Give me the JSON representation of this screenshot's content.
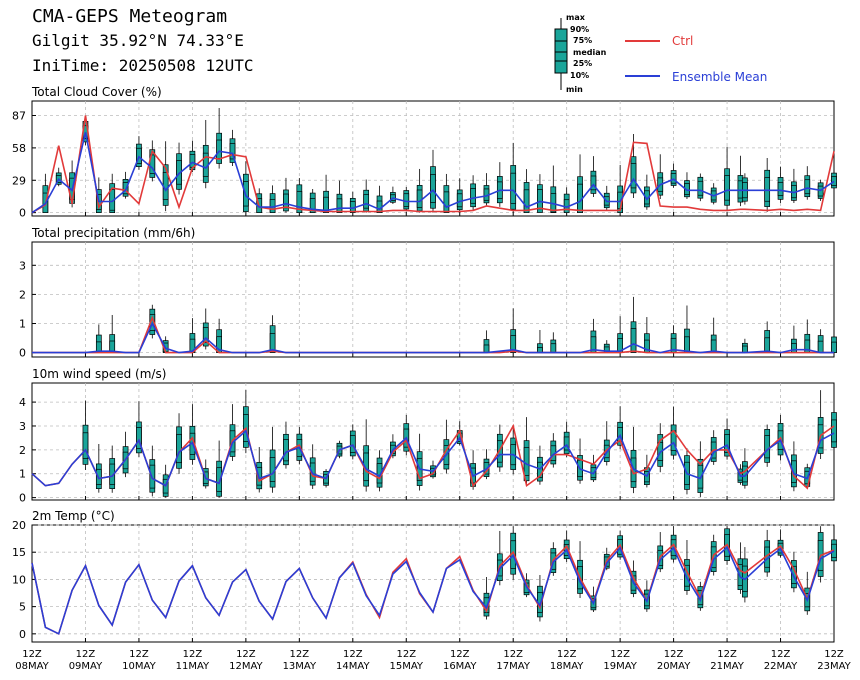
{
  "header": {
    "title": "CMA-GEPS Meteogram",
    "station": "Gilgit 35.92°N 74.33°E",
    "init_time": "IniTime: 20250508 12UTC"
  },
  "legend": {
    "box_labels": [
      "max",
      "90%",
      "75%",
      "median",
      "25%",
      "10%",
      "min"
    ],
    "ctrl_label": "Ctrl",
    "mean_label": "Ensemble Mean",
    "ctrl_color": "#e23a3a",
    "mean_color": "#2a3fd6",
    "box_color": "#1aa59a"
  },
  "x_axis": {
    "tick_labels": [
      [
        "12Z",
        "08MAY"
      ],
      [
        "12Z",
        "09MAY"
      ],
      [
        "12Z",
        "10MAY"
      ],
      [
        "12Z",
        "11MAY"
      ],
      [
        "12Z",
        "12MAY"
      ],
      [
        "12Z",
        "13MAY"
      ],
      [
        "12Z",
        "14MAY"
      ],
      [
        "12Z",
        "15MAY"
      ],
      [
        "12Z",
        "16MAY"
      ],
      [
        "12Z",
        "17MAY"
      ],
      [
        "12Z",
        "18MAY"
      ],
      [
        "12Z",
        "19MAY"
      ],
      [
        "12Z",
        "20MAY"
      ],
      [
        "12Z",
        "21MAY"
      ],
      [
        "12Z",
        "22MAY"
      ],
      [
        "12Z",
        "23MAY"
      ]
    ]
  },
  "chart_data": [
    {
      "type": "box",
      "title": "Total Cloud Cover (%)",
      "yticks": [
        0,
        29,
        58,
        87
      ],
      "ylim": [
        -3,
        100
      ],
      "x": [
        0,
        6,
        12,
        18,
        24,
        30,
        36,
        42,
        48,
        54,
        60,
        66,
        72,
        78,
        84,
        90,
        96,
        102,
        108,
        114,
        120,
        126,
        132,
        138,
        144,
        150,
        156,
        162,
        168,
        174,
        180,
        186,
        192,
        198,
        204,
        210,
        216,
        222,
        228,
        234,
        240,
        246,
        252,
        258,
        264,
        270,
        276,
        282,
        288,
        294,
        300,
        306,
        312,
        318,
        320,
        330,
        336,
        342,
        348,
        354,
        360
      ],
      "ctrl": [
        0,
        7,
        60,
        8,
        87,
        5,
        22,
        20,
        8,
        55,
        40,
        5,
        40,
        50,
        48,
        52,
        50,
        5,
        3,
        5,
        3,
        2,
        1,
        1,
        1,
        1,
        1,
        2,
        2,
        1,
        1,
        1,
        1,
        2,
        6,
        4,
        2,
        2,
        4,
        2,
        3,
        2,
        2,
        2,
        2,
        63,
        62,
        6,
        5,
        5,
        3,
        2,
        2,
        3,
        3,
        2,
        3,
        2,
        3,
        2,
        55
      ],
      "mean": [
        0,
        8,
        30,
        20,
        72,
        10,
        10,
        20,
        50,
        40,
        20,
        35,
        45,
        40,
        55,
        53,
        15,
        5,
        5,
        8,
        5,
        3,
        2,
        4,
        4,
        8,
        3,
        13,
        10,
        10,
        20,
        5,
        10,
        13,
        15,
        20,
        20,
        5,
        10,
        8,
        5,
        10,
        25,
        10,
        10,
        30,
        12,
        25,
        30,
        20,
        20,
        15,
        20,
        20,
        20,
        20,
        20,
        18,
        22,
        20,
        28
      ],
      "has_box": [
        0,
        1,
        1,
        1,
        1,
        1,
        1,
        1,
        1,
        1,
        1,
        1,
        1,
        1,
        1,
        1,
        1,
        1,
        1,
        1,
        1,
        1,
        1,
        1,
        1,
        1,
        1,
        1,
        1,
        1,
        1,
        1,
        1,
        1,
        1,
        1,
        1,
        1,
        1,
        1,
        1,
        1,
        1,
        1,
        1,
        1,
        1,
        1,
        1,
        1,
        1,
        1,
        1,
        1,
        1,
        1,
        1,
        1,
        1,
        1,
        1
      ]
    },
    {
      "type": "box",
      "title": "Total precipitation (mm/6h)",
      "yticks": [
        0,
        1,
        2,
        3
      ],
      "ylim": [
        -0.15,
        3.8
      ],
      "x": [
        0,
        6,
        12,
        18,
        24,
        30,
        36,
        42,
        48,
        54,
        60,
        66,
        72,
        78,
        84,
        90,
        96,
        102,
        108,
        114,
        120,
        126,
        132,
        138,
        144,
        150,
        156,
        162,
        168,
        174,
        180,
        186,
        192,
        198,
        204,
        210,
        216,
        222,
        228,
        234,
        240,
        246,
        252,
        258,
        264,
        270,
        276,
        282,
        288,
        294,
        300,
        306,
        312,
        318,
        320,
        330,
        336,
        342,
        348,
        354,
        360
      ],
      "ctrl": [
        0,
        0,
        0,
        0,
        0,
        0,
        0,
        0,
        0,
        1.2,
        0,
        0,
        0,
        0.4,
        0,
        0,
        0,
        0,
        0.05,
        0,
        0,
        0,
        0,
        0,
        0,
        0,
        0,
        0,
        0,
        0,
        0,
        0,
        0,
        0,
        0,
        0,
        0.05,
        0,
        0,
        0,
        0,
        0,
        0,
        0,
        0,
        0.05,
        0,
        0,
        0,
        0,
        0,
        0,
        0,
        0,
        0,
        0,
        0,
        0,
        0,
        0,
        0
      ],
      "mean": [
        0,
        0,
        0,
        0,
        0,
        0.05,
        0.05,
        0,
        0,
        1.0,
        0.15,
        0,
        0.05,
        0.5,
        0.1,
        0,
        0,
        0,
        0.1,
        0,
        0,
        0,
        0,
        0,
        0,
        0,
        0,
        0,
        0,
        0,
        0,
        0,
        0,
        0,
        0,
        0.05,
        0.1,
        0,
        0,
        0,
        0,
        0,
        0.1,
        0.05,
        0.05,
        0.3,
        0.1,
        0,
        0.1,
        0.05,
        0,
        0.05,
        0,
        0,
        0,
        0.05,
        0,
        0.1,
        0.1,
        0,
        0
      ],
      "has_box": [
        0,
        0,
        0,
        0,
        0,
        1,
        1,
        0,
        0,
        1,
        1,
        0,
        1,
        1,
        1,
        0,
        0,
        0,
        1,
        0,
        0,
        0,
        0,
        0,
        0,
        0,
        0,
        0,
        0,
        0,
        0,
        0,
        0,
        0,
        1,
        0,
        1,
        0,
        1,
        1,
        0,
        0,
        1,
        1,
        1,
        1,
        1,
        0,
        1,
        1,
        0,
        1,
        0,
        0,
        1,
        1,
        0,
        1,
        1,
        1,
        1
      ]
    },
    {
      "type": "box",
      "title": "10m wind speed (m/s)",
      "yticks": [
        0,
        1,
        2,
        3,
        4
      ],
      "ylim": [
        -0.1,
        4.8
      ],
      "x": [
        0,
        6,
        12,
        18,
        24,
        30,
        36,
        42,
        48,
        54,
        60,
        66,
        72,
        78,
        84,
        90,
        96,
        102,
        108,
        114,
        120,
        126,
        132,
        138,
        144,
        150,
        156,
        162,
        168,
        174,
        180,
        186,
        192,
        198,
        204,
        210,
        216,
        222,
        228,
        234,
        240,
        246,
        252,
        258,
        264,
        270,
        276,
        282,
        288,
        294,
        300,
        306,
        312,
        318,
        320,
        330,
        336,
        342,
        348,
        354,
        360
      ],
      "ctrl": [
        1.0,
        0.5,
        0.6,
        1.4,
        2.0,
        0.8,
        0.9,
        1.6,
        2.4,
        0.8,
        0.5,
        1.9,
        2.5,
        0.8,
        0.6,
        2.4,
        2.9,
        0.7,
        1.0,
        1.9,
        2.2,
        0.9,
        0.8,
        2.0,
        2.2,
        1.1,
        0.8,
        1.9,
        2.4,
        0.8,
        1.0,
        2.0,
        2.8,
        0.5,
        1.1,
        2.0,
        3.0,
        0.5,
        0.9,
        1.8,
        1.8,
        1.6,
        1.4,
        2.0,
        2.4,
        1.0,
        1.2,
        2.4,
        2.8,
        2.0,
        1.4,
        2.0,
        2.0,
        1.0,
        1.1,
        2.0,
        2.5,
        0.9,
        0.4,
        2.6,
        3.0
      ],
      "mean": [
        1.0,
        0.5,
        0.6,
        1.4,
        2.0,
        0.8,
        0.9,
        1.6,
        2.4,
        0.8,
        0.5,
        1.9,
        2.3,
        0.8,
        0.6,
        2.3,
        2.8,
        0.8,
        1.0,
        1.9,
        2.1,
        1.0,
        0.8,
        2.0,
        2.2,
        1.2,
        0.9,
        2.0,
        2.5,
        1.2,
        1.1,
        1.8,
        2.5,
        0.9,
        1.2,
        1.8,
        1.8,
        1.4,
        1.2,
        1.8,
        2.2,
        1.2,
        1.0,
        1.9,
        2.6,
        1.2,
        0.9,
        1.9,
        2.3,
        1.0,
        0.8,
        1.9,
        2.2,
        0.9,
        0.9,
        2.0,
        2.4,
        1.0,
        0.8,
        2.4,
        2.7
      ],
      "has_box": [
        0,
        0,
        0,
        0,
        1,
        1,
        1,
        1,
        1,
        1,
        1,
        1,
        1,
        1,
        1,
        1,
        1,
        1,
        1,
        1,
        1,
        1,
        1,
        1,
        1,
        1,
        1,
        1,
        1,
        1,
        1,
        1,
        1,
        1,
        1,
        1,
        1,
        1,
        1,
        1,
        1,
        1,
        1,
        1,
        1,
        1,
        1,
        1,
        1,
        1,
        1,
        1,
        1,
        1,
        1,
        1,
        1,
        1,
        1,
        1,
        1
      ]
    },
    {
      "type": "box",
      "title": "2m Temp (°C)",
      "yticks": [
        0,
        5,
        10,
        15,
        20
      ],
      "ylim": [
        -1.5,
        20
      ],
      "x": [
        0,
        6,
        12,
        18,
        24,
        30,
        36,
        42,
        48,
        54,
        60,
        66,
        72,
        78,
        84,
        90,
        96,
        102,
        108,
        114,
        120,
        126,
        132,
        138,
        144,
        150,
        156,
        162,
        168,
        174,
        180,
        186,
        192,
        198,
        204,
        210,
        216,
        222,
        228,
        234,
        240,
        246,
        252,
        258,
        264,
        270,
        276,
        282,
        288,
        294,
        300,
        306,
        312,
        318,
        320,
        330,
        336,
        342,
        348,
        354,
        360
      ],
      "ctrl": [
        13,
        1.2,
        0,
        8,
        12.5,
        5.2,
        1.6,
        9.5,
        12.7,
        6.2,
        3.0,
        9.7,
        12.5,
        6.6,
        3.4,
        9.5,
        11.8,
        6.0,
        2.7,
        9.6,
        12.0,
        6.6,
        2.9,
        10.3,
        13.2,
        7.2,
        3.0,
        11.3,
        13.8,
        7.4,
        4.0,
        12.0,
        14.2,
        8.0,
        4.2,
        12.5,
        15.0,
        9.0,
        4.8,
        13.6,
        16.1,
        10.3,
        5.8,
        13.5,
        16.3,
        10.2,
        6.1,
        14.2,
        16.4,
        11.4,
        6.6,
        14.5,
        16.4,
        11.6,
        11.2,
        14.4,
        16.1,
        11.9,
        6.4,
        14.4,
        15.4
      ],
      "mean": [
        13,
        1.2,
        0,
        8,
        12.5,
        5.2,
        1.6,
        9.5,
        12.7,
        6.2,
        3.0,
        9.7,
        12.5,
        6.6,
        3.4,
        9.5,
        11.8,
        6.0,
        2.7,
        9.6,
        12.0,
        6.6,
        2.9,
        10.3,
        13.0,
        7.0,
        3.4,
        11.0,
        13.3,
        7.6,
        4.0,
        12.0,
        13.6,
        7.8,
        4.8,
        12.0,
        14.4,
        8.6,
        5.2,
        13.2,
        15.4,
        9.6,
        5.6,
        13.0,
        15.8,
        9.4,
        6.0,
        13.6,
        15.8,
        10.2,
        6.2,
        13.7,
        15.9,
        10.4,
        10.0,
        13.8,
        15.6,
        10.5,
        6.2,
        13.8,
        15.2
      ],
      "has_box": [
        0,
        0,
        0,
        0,
        0,
        0,
        0,
        0,
        0,
        0,
        0,
        0,
        0,
        0,
        0,
        0,
        0,
        0,
        0,
        0,
        0,
        0,
        0,
        0,
        0,
        0,
        0,
        0,
        0,
        0,
        0,
        0,
        0,
        0,
        1,
        1,
        1,
        1,
        1,
        1,
        1,
        1,
        1,
        1,
        1,
        1,
        1,
        1,
        1,
        1,
        1,
        1,
        1,
        1,
        1,
        1,
        1,
        1,
        1,
        1,
        1
      ]
    }
  ]
}
